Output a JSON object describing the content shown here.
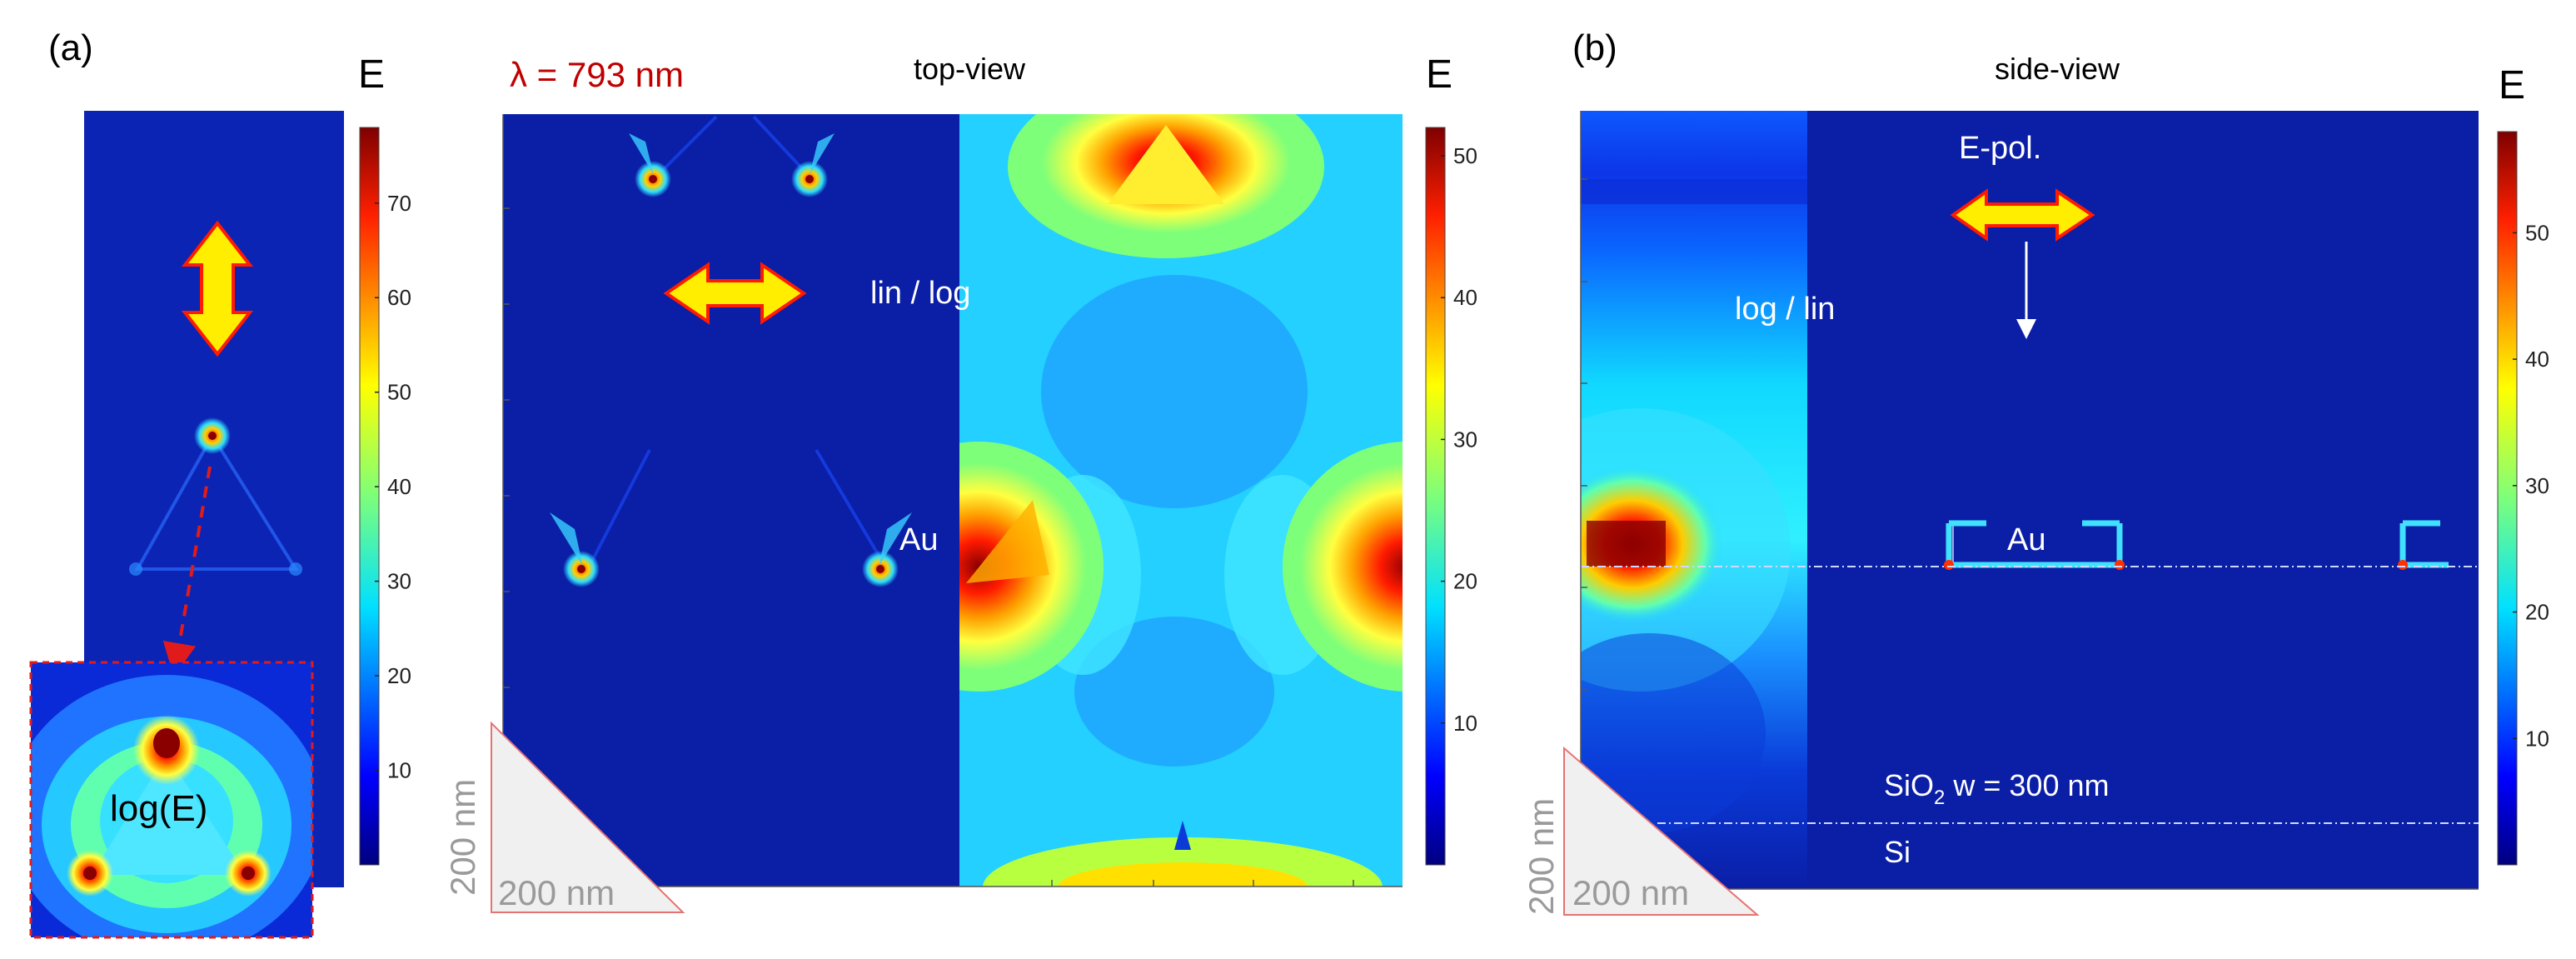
{
  "panel_a": {
    "label": "(a)",
    "colorbar_small": {
      "title": "E",
      "ticks": [
        "10",
        "20",
        "30",
        "40",
        "50",
        "60",
        "70"
      ],
      "tick_values": [
        10,
        20,
        30,
        40,
        50,
        60,
        70
      ],
      "range": [
        0,
        78
      ]
    },
    "inset_label": "log(E)",
    "wavelength_label": "λ = 793 nm",
    "view_title": "top-view",
    "scale_label_vertical": "200 nm",
    "scale_label_horizontal": "200 nm",
    "split_label": "lin / log",
    "material_label": "Au",
    "colorbar_large": {
      "title": "E",
      "ticks": [
        "10",
        "20",
        "30",
        "40",
        "50"
      ],
      "tick_values": [
        10,
        20,
        30,
        40,
        50
      ],
      "range": [
        0,
        52
      ]
    }
  },
  "panel_b": {
    "label": "(b)",
    "view_title": "side-view",
    "polarization_label": "E-pol.",
    "split_label": "log / lin",
    "material_label": "Au",
    "oxide_formula_main": "SiO",
    "oxide_formula_sub": "2",
    "oxide_thickness": " w = 300 nm",
    "substrate_label": "Si",
    "scale_label_vertical": "200 nm",
    "scale_label_horizontal": "200 nm",
    "colorbar": {
      "title": "E",
      "ticks": [
        "10",
        "20",
        "30",
        "40",
        "50"
      ],
      "tick_values": [
        10,
        20,
        30,
        40,
        50
      ],
      "range": [
        0,
        58
      ]
    }
  },
  "colors": {
    "background_field": "#0a1ea6",
    "wavelength_text": "#c00000",
    "arrow_fill": "#ffee00",
    "arrow_stroke": "#ff1a00",
    "inset_border": "#e11b1b",
    "scale_text": "#9a9a9a"
  }
}
